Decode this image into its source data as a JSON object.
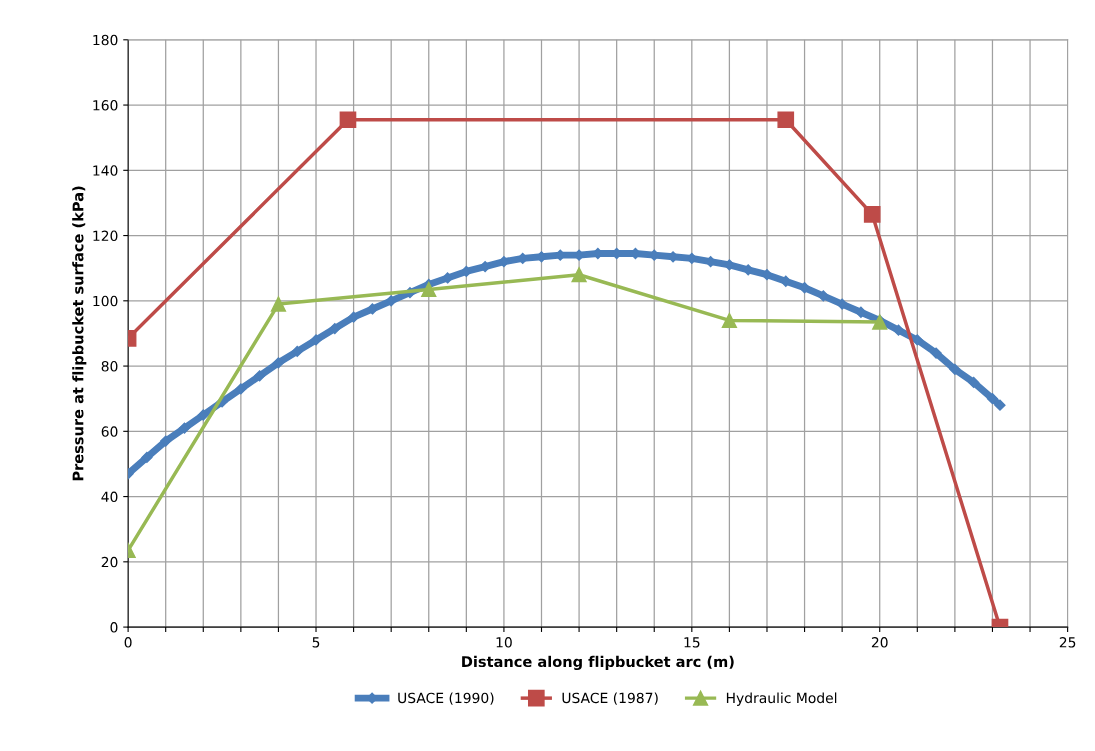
{
  "chart_data": {
    "type": "line",
    "xlabel": "Distance along flipbucket arc (m)",
    "ylabel": "Pressure at flipbucket surface (kPa)",
    "xlim": [
      0,
      25
    ],
    "ylim": [
      0,
      180
    ],
    "xticks": [
      0,
      {
        "value": 1,
        "label": null
      },
      {
        "value": 2,
        "label": null
      },
      {
        "value": 3,
        "label": null
      },
      {
        "value": 4,
        "label": null
      },
      5,
      {
        "value": 6,
        "label": null
      },
      {
        "value": 7,
        "label": null
      },
      {
        "value": 8,
        "label": null
      },
      {
        "value": 9,
        "label": null
      },
      10,
      {
        "value": 11,
        "label": null
      },
      {
        "value": 12,
        "label": null
      },
      {
        "value": 13,
        "label": null
      },
      {
        "value": 14,
        "label": null
      },
      15,
      {
        "value": 16,
        "label": null
      },
      {
        "value": 17,
        "label": null
      },
      {
        "value": 18,
        "label": null
      },
      {
        "value": 19,
        "label": null
      },
      20,
      {
        "value": 21,
        "label": null
      },
      {
        "value": 22,
        "label": null
      },
      {
        "value": 23,
        "label": null
      },
      {
        "value": 24,
        "label": null
      },
      25
    ],
    "yticks": [
      0,
      20,
      40,
      60,
      80,
      100,
      120,
      140,
      160,
      180
    ],
    "grid": true,
    "legend": "bottom",
    "series": [
      {
        "name": "USACE (1990)",
        "color": "#4a7ebb",
        "marker": "diamond",
        "x": [
          0,
          0.5,
          1,
          1.5,
          2,
          2.5,
          3,
          3.5,
          4,
          4.5,
          5,
          5.5,
          6,
          6.5,
          7,
          7.5,
          8,
          8.5,
          9,
          9.5,
          10,
          10.5,
          11,
          11.5,
          12,
          12.5,
          13,
          13.5,
          14,
          14.5,
          15,
          15.5,
          16,
          16.5,
          17,
          17.5,
          18,
          18.5,
          19,
          19.5,
          20,
          20.5,
          21,
          21.5,
          22,
          22.5,
          23,
          23.2
        ],
        "values": [
          47,
          52,
          57,
          61,
          65,
          69,
          73,
          77,
          81,
          84.5,
          88,
          91.5,
          95,
          97.5,
          100,
          102.5,
          105,
          107,
          109,
          110.5,
          112,
          113,
          113.5,
          114,
          114,
          114.5,
          114.5,
          114.5,
          114,
          113.5,
          113,
          112,
          111,
          109.5,
          108,
          106,
          104,
          101.5,
          99,
          96.5,
          94,
          91,
          88,
          84,
          79,
          75,
          70,
          68
        ]
      },
      {
        "name": "USACE (1987)",
        "color": "#be4b48",
        "marker": "square",
        "x": [
          0,
          5.85,
          17.5,
          19.8,
          23.2
        ],
        "values": [
          88.5,
          155.5,
          155.5,
          126.5,
          0
        ]
      },
      {
        "name": "Hydraulic Model",
        "color": "#98b954",
        "marker": "triangle",
        "x": [
          0,
          4,
          8,
          12,
          16,
          20
        ],
        "values": [
          23.5,
          99,
          103.5,
          108,
          94,
          93.5
        ]
      }
    ]
  }
}
